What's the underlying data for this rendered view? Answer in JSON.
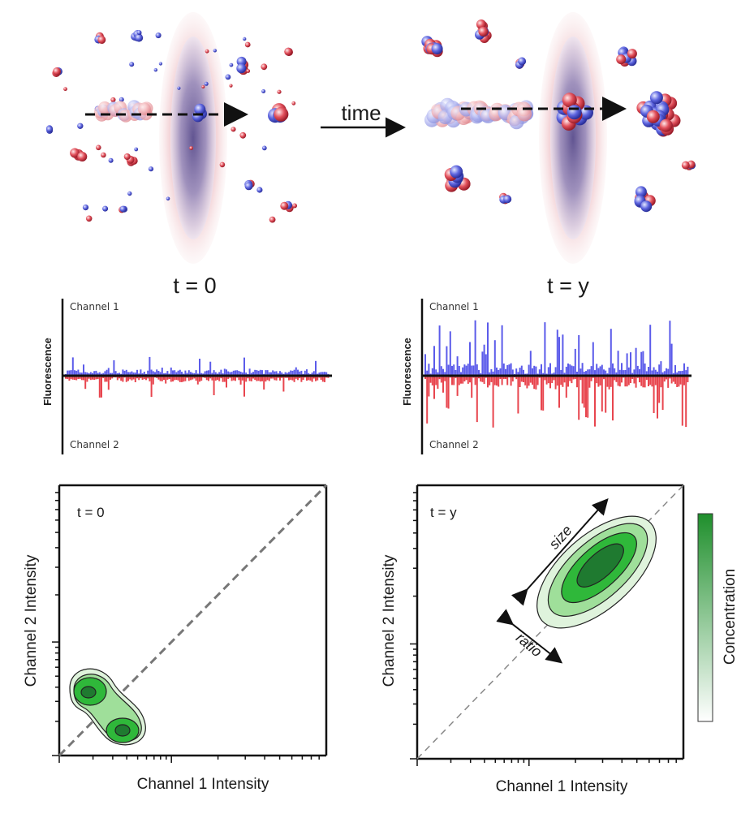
{
  "top": {
    "time_label": "time",
    "left_time": "t = 0",
    "right_time": "t = y"
  },
  "traces": {
    "channel1_label": "Channel 1",
    "channel2_label": "Channel 2",
    "ylabel": "Fluorescence",
    "colors": {
      "channel1": "#5b5bea",
      "channel2": "#e8454e"
    }
  },
  "contours": {
    "left": {
      "panel_label": "t = 0"
    },
    "right": {
      "panel_label": "t = y",
      "size_label": "size",
      "ratio_label": "ratio"
    },
    "xlabel": "Channel 1 Intensity",
    "ylabel": "Channel 2 Intensity",
    "colorbar_label": "Concentration",
    "colors": {
      "dark": "#1f7a30",
      "mid": "#2fb83a",
      "light": "#9fdf9a",
      "lightest": "#dff3dc"
    }
  }
}
